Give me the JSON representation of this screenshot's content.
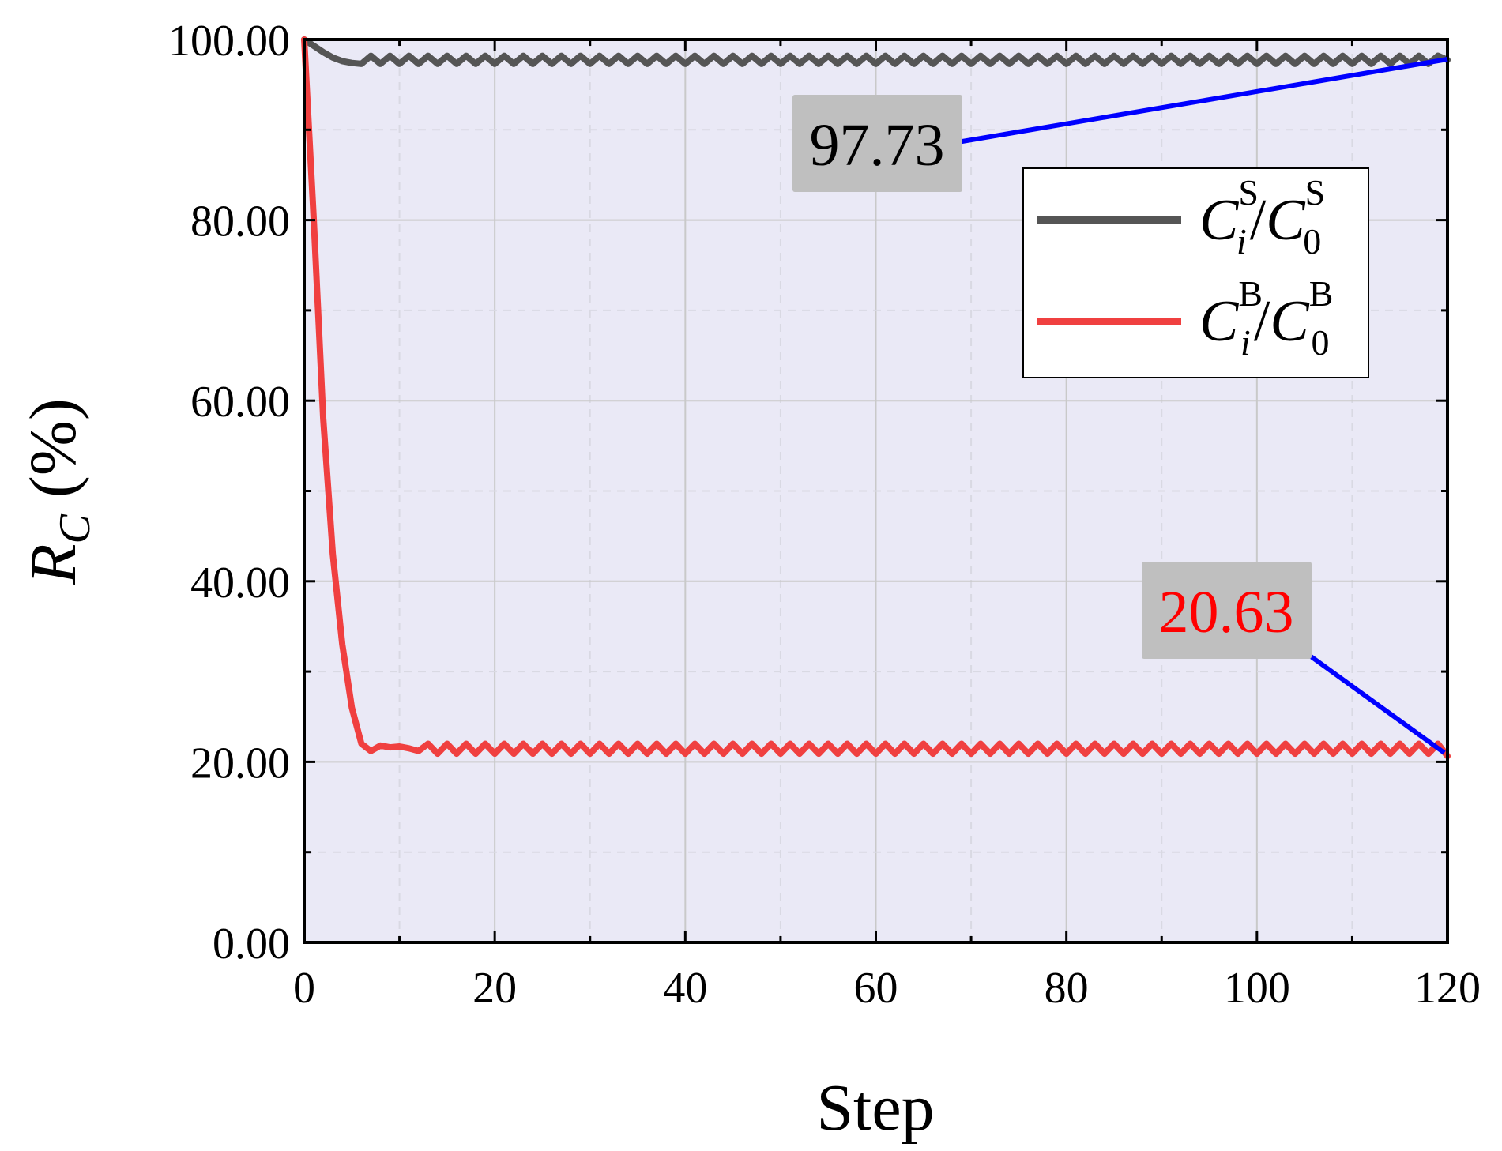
{
  "chart_data": {
    "type": "line",
    "xlabel": "Step",
    "ylabel": {
      "main": "R",
      "sub": "C",
      "unit": " (%)"
    },
    "xlim": [
      0,
      120
    ],
    "ylim": [
      0,
      100
    ],
    "x_ticks": [
      "0",
      "20",
      "40",
      "60",
      "80",
      "100",
      "120"
    ],
    "y_ticks": [
      "0.00",
      "20.00",
      "40.00",
      "60.00",
      "80.00",
      "100.00"
    ],
    "grid": true,
    "legend_position": "upper-right",
    "colors": {
      "plot_background": "#eae9f6",
      "series_s": "#555555",
      "series_b": "#f04040",
      "annotation_line": "#0000ff",
      "annotation_box": "#bfbfbf",
      "annotation_b_text": "#ff0000"
    },
    "series": [
      {
        "name": {
          "base": "C",
          "sub1": "i",
          "sup1": "S",
          "sep": "/",
          "sub2": "0",
          "sup2": "S"
        },
        "start": [
          [
            0,
            100
          ],
          [
            1,
            99.3
          ],
          [
            2,
            98.6
          ],
          [
            3,
            98.0
          ],
          [
            4,
            97.6
          ],
          [
            5,
            97.4
          ],
          [
            6,
            97.3
          ]
        ],
        "steady_from": 7,
        "steady_high": 98.2,
        "steady_low": 97.3,
        "end": [
          120,
          97.73
        ]
      },
      {
        "name": {
          "base": "C",
          "sub1": "i",
          "sup1": "B",
          "sep": "/",
          "sub2": "0",
          "sup2": "B"
        },
        "start": [
          [
            0,
            100
          ],
          [
            1,
            80
          ],
          [
            2,
            58
          ],
          [
            3,
            43
          ],
          [
            4,
            33
          ],
          [
            5,
            26
          ],
          [
            6,
            22
          ],
          [
            7,
            21.2
          ],
          [
            8,
            21.8
          ],
          [
            9,
            21.6
          ],
          [
            10,
            21.7
          ],
          [
            11,
            21.5
          ],
          [
            12,
            21.2
          ]
        ],
        "steady_from": 13,
        "steady_high": 22.0,
        "steady_low": 20.9,
        "end": [
          120,
          20.63
        ]
      }
    ],
    "annotations": [
      {
        "text": "97.73",
        "series": 0,
        "point": [
          120,
          97.73
        ]
      },
      {
        "text": "20.63",
        "series": 1,
        "point": [
          120,
          20.63
        ]
      }
    ]
  }
}
